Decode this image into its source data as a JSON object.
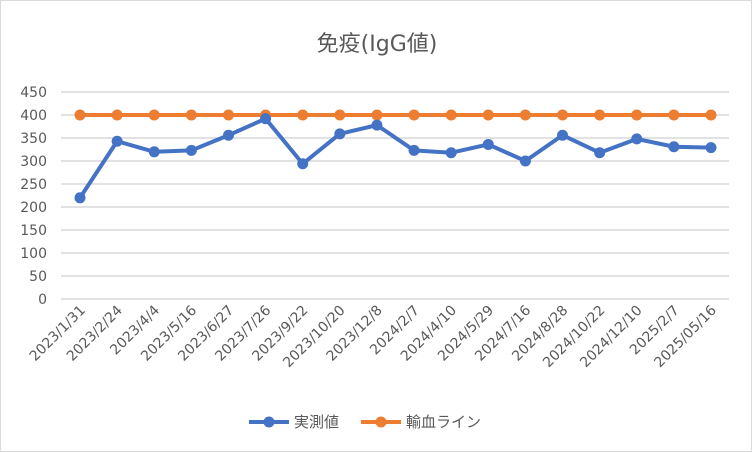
{
  "chart_data": {
    "type": "line",
    "title": "免疫(IgG値)",
    "xlabel": "",
    "ylabel": "",
    "ylim": [
      0,
      450
    ],
    "yticks": [
      0,
      50,
      100,
      150,
      200,
      250,
      300,
      350,
      400,
      450
    ],
    "grid": true,
    "legend_position": "bottom",
    "categories": [
      "2023/1/31",
      "2023/2/24",
      "2023/4/4",
      "2023/5/16",
      "2023/6/27",
      "2023/7/26",
      "2023/9/22",
      "2023/10/20",
      "2023/12/8",
      "2024/2/7",
      "2024/4/10",
      "2024/5/29",
      "2024/7/16",
      "2024/8/28",
      "2024/10/22",
      "2024/12/10",
      "2025/2/7",
      "2025/05/16"
    ],
    "series": [
      {
        "name": "実測値",
        "color": "#4472c4",
        "values": [
          220,
          343,
          320,
          323,
          356,
          392,
          294,
          359,
          378,
          323,
          318,
          336,
          300,
          356,
          318,
          348,
          331,
          329
        ]
      },
      {
        "name": "輸血ライン",
        "color": "#ed7d31",
        "values": [
          400,
          400,
          400,
          400,
          400,
          400,
          400,
          400,
          400,
          400,
          400,
          400,
          400,
          400,
          400,
          400,
          400,
          400
        ]
      }
    ]
  }
}
